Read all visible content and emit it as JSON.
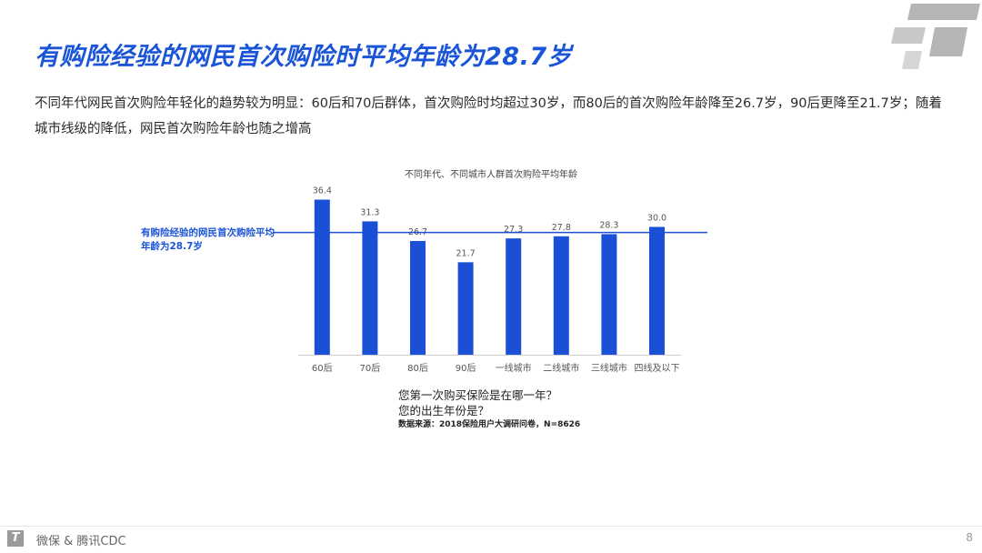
{
  "header": {
    "title": "有购险经验的网民首次购险时平均年龄为28.7岁",
    "subtitle": "不同年代网民首次购险年轻化的趋势较为明显：60后和70后群体，首次购险时均超过30岁，而80后的首次购险年龄降至26.7岁，90后更降至21.7岁；随着城市线级的降低，网民首次购险年龄也随之增高"
  },
  "chart_data": {
    "type": "bar",
    "title": "不同年代、不同城市人群首次购险平均年龄",
    "categories": [
      "60后",
      "70后",
      "80后",
      "90后",
      "一线城市",
      "二线城市",
      "三线城市",
      "四线及以下"
    ],
    "values": [
      36.4,
      31.3,
      26.7,
      21.7,
      27.3,
      27.8,
      28.3,
      30.0
    ],
    "value_labels": [
      "36.4",
      "31.3",
      "26.7",
      "21.7",
      "27.3",
      "27.8",
      "28.3",
      "30.0"
    ],
    "reference_line": {
      "value": 28.7,
      "label": "有购险经验的网民首次购险平均年龄为28.7岁"
    },
    "ylim": [
      0,
      38
    ],
    "bar_color": "#1a4fd6",
    "line_color": "#1a4fd6",
    "grid": false
  },
  "questions": {
    "q1": "您第一次购买保险是在哪一年？",
    "q2": "您的出生年份是？",
    "source": "数据来源：2018保险用户大调研问卷，N=8626"
  },
  "footer": {
    "logo_letter": "T",
    "text": "微保 & 腾讯CDC",
    "page": "8"
  },
  "colors": {
    "accent": "#1a55d8",
    "bar": "#1a4fd6"
  },
  "icons": {
    "brand_mark": "tencent-cdc-logo-icon"
  }
}
